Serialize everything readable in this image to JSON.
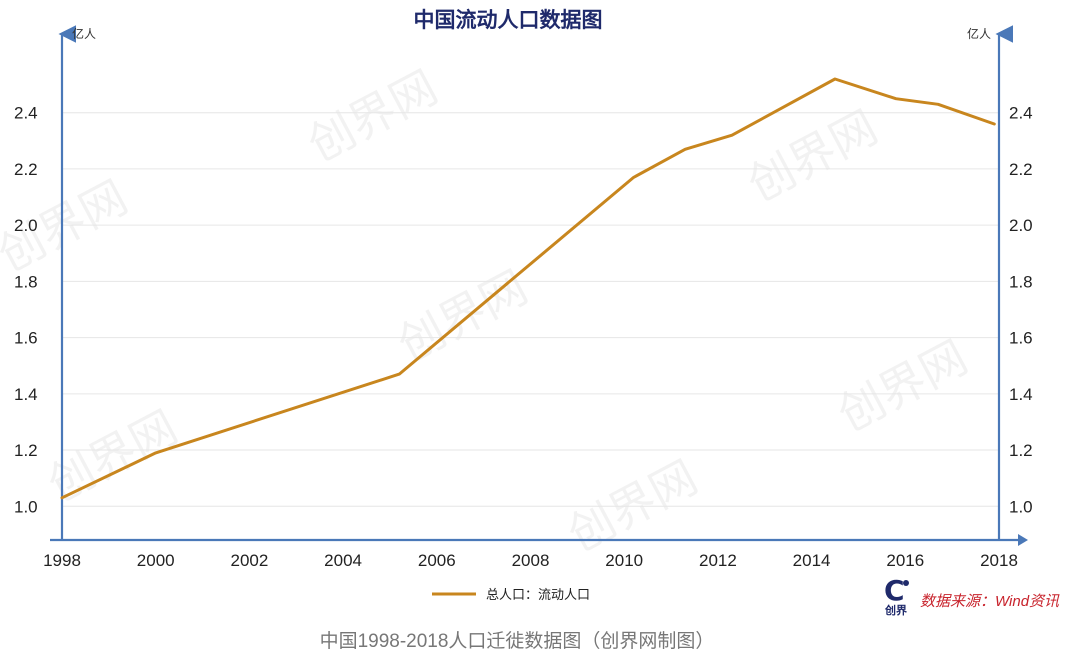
{
  "chart_data": {
    "type": "line",
    "title": "中国流动人口数据图",
    "y_unit_left": "亿人",
    "y_unit_right": "亿人",
    "x_ticks": [
      "1998",
      "2000",
      "2002",
      "2004",
      "2006",
      "2008",
      "2010",
      "2012",
      "2014",
      "2016",
      "2018"
    ],
    "y_ticks": [
      "1.0",
      "1.2",
      "1.4",
      "1.6",
      "1.8",
      "2.0",
      "2.2",
      "2.4"
    ],
    "xlim": [
      1998,
      2018
    ],
    "ylim": [
      0.88,
      2.68
    ],
    "grid": true,
    "legend_position": "bottom-center",
    "series": [
      {
        "name": "总人口：流动人口",
        "color": "#c8861e",
        "x": [
          1998,
          2000,
          2005.2,
          2010.2,
          2011.3,
          2012.3,
          2014.5,
          2015.8,
          2016.7,
          2017.9
        ],
        "y": [
          1.03,
          1.19,
          1.47,
          2.17,
          2.27,
          2.32,
          2.52,
          2.45,
          2.43,
          2.36
        ]
      }
    ]
  },
  "source_note": "数据来源：Wind资讯",
  "logo": {
    "glyph": "C",
    "text": "创界"
  },
  "watermark": "创界网",
  "caption": "中国1998-2018人口迁徙数据图（创界网制图）",
  "colors": {
    "axis": "#4a78b8",
    "grid": "#e6e6e6",
    "title": "#1f2a6b",
    "source": "#c8232c",
    "caption": "#777777"
  }
}
